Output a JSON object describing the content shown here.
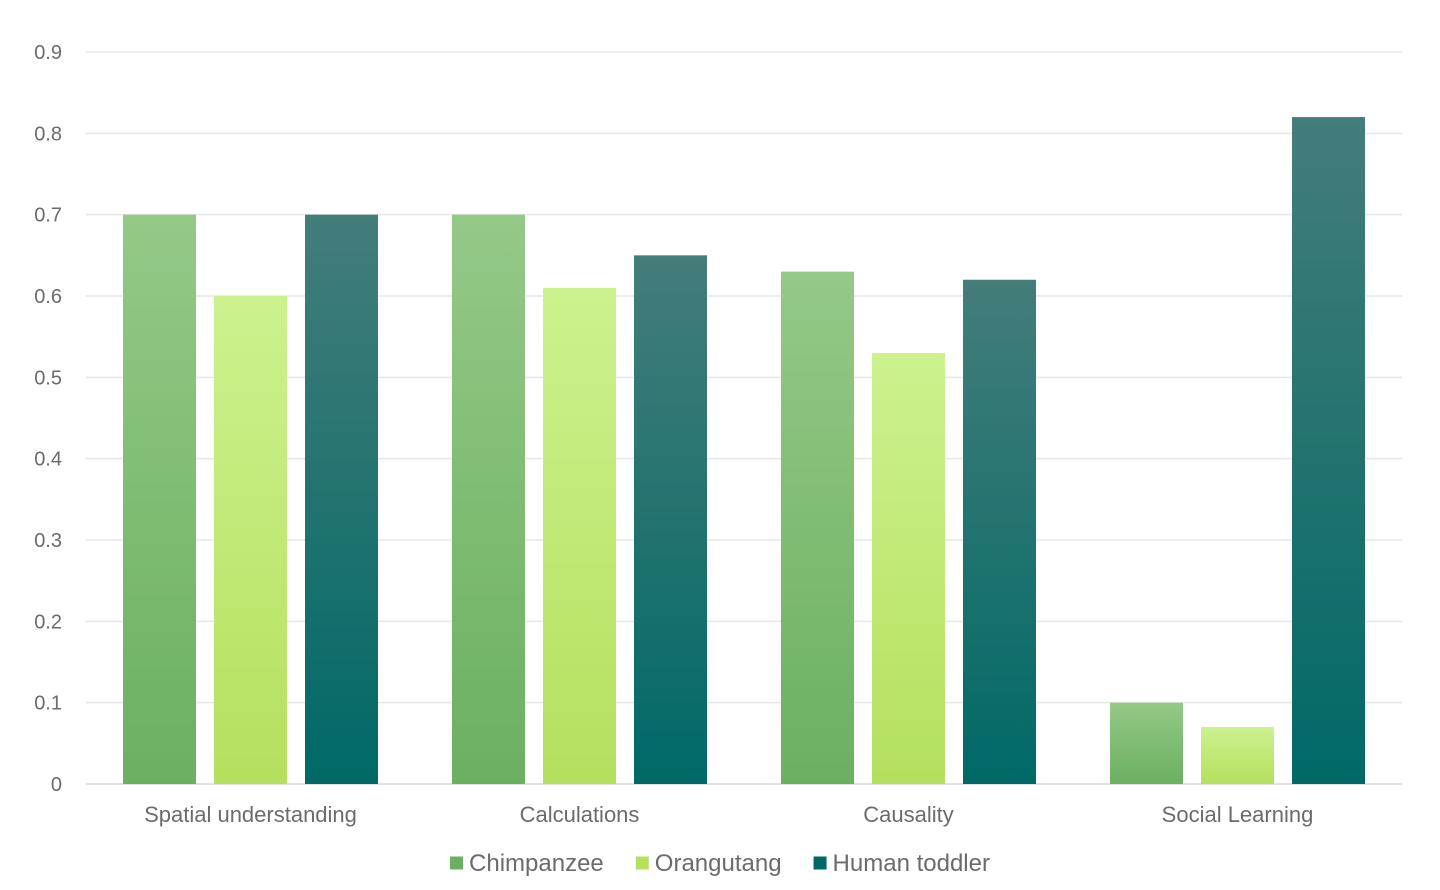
{
  "chart_data": {
    "type": "bar",
    "categories": [
      "Spatial understanding",
      "Calculations",
      "Causality",
      "Social Learning"
    ],
    "series": [
      {
        "name": "Chimpanzee",
        "values": [
          0.7,
          0.7,
          0.63,
          0.1
        ],
        "color_top": "#94c987",
        "color_bottom": "#6bb060"
      },
      {
        "name": "Orangutang",
        "values": [
          0.6,
          0.61,
          0.53,
          0.07
        ],
        "color_top": "#ccf28e",
        "color_bottom": "#b4e05e"
      },
      {
        "name": "Human toddler",
        "values": [
          0.7,
          0.65,
          0.62,
          0.82
        ],
        "color_top": "#447d7a",
        "color_bottom": "#006966"
      }
    ],
    "y_ticks": [
      "0",
      "0.1",
      "0.2",
      "0.3",
      "0.4",
      "0.5",
      "0.6",
      "0.7",
      "0.8",
      "0.9"
    ],
    "ylim": [
      0,
      0.9
    ],
    "grid": true,
    "legend_position": "bottom",
    "title": "",
    "xlabel": "",
    "ylabel": ""
  }
}
